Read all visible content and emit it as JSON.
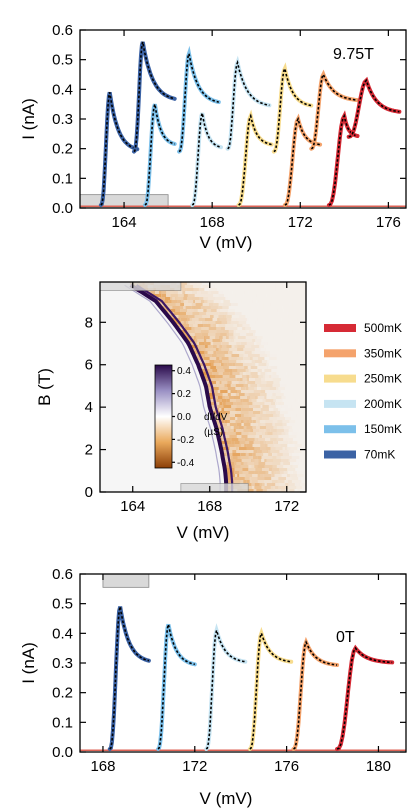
{
  "legend": [
    {
      "label": "500mK",
      "color": "#d62a35"
    },
    {
      "label": "350mK",
      "color": "#f4a36c"
    },
    {
      "label": "250mK",
      "color": "#f7dc8e"
    },
    {
      "label": "200mK",
      "color": "#c6e4f2"
    },
    {
      "label": "150mK",
      "color": "#7cc0ea"
    },
    {
      "label": "70mK",
      "color": "#3b62a4"
    }
  ],
  "fit_color": "#000000",
  "chart_data": [
    {
      "type": "line",
      "annotation": "9.75T",
      "xlabel": "V (mV)",
      "ylabel": "I (nA)",
      "xlim": [
        162,
        176.8
      ],
      "ylim": [
        0,
        0.6
      ],
      "xticks": [
        "164",
        "168",
        "172",
        "176"
      ],
      "yticks": [
        "0.0",
        "0.1",
        "0.2",
        "0.3",
        "0.4",
        "0.5",
        "0.6"
      ],
      "shaded_box": {
        "x": [
          162,
          166
        ],
        "y": [
          0,
          0.045
        ]
      },
      "peaks": [
        {
          "v0": 162.95,
          "i0": 0.01,
          "vp": 163.35,
          "ip": 0.39,
          "imin": 0.19,
          "vend": 164.6,
          "color": "#3b62a4"
        },
        {
          "v0": 164.45,
          "i0": 0.19,
          "vp": 164.85,
          "ip": 0.56,
          "imin": 0.36,
          "vend": 166.3,
          "color": "#3b62a4"
        },
        {
          "v0": 164.95,
          "i0": 0.01,
          "vp": 165.4,
          "ip": 0.35,
          "imin": 0.21,
          "vend": 166.3,
          "color": "#7cc0ea"
        },
        {
          "v0": 166.5,
          "i0": 0.19,
          "vp": 166.95,
          "ip": 0.52,
          "imin": 0.35,
          "vend": 168.3,
          "color": "#7cc0ea"
        },
        {
          "v0": 167.1,
          "i0": 0.01,
          "vp": 167.55,
          "ip": 0.32,
          "imin": 0.2,
          "vend": 168.4,
          "color": "#c6e4f2"
        },
        {
          "v0": 168.7,
          "i0": 0.2,
          "vp": 169.15,
          "ip": 0.49,
          "imin": 0.34,
          "vend": 170.6,
          "color": "#c6e4f2"
        },
        {
          "v0": 169.2,
          "i0": 0.01,
          "vp": 169.75,
          "ip": 0.31,
          "imin": 0.21,
          "vend": 170.7,
          "color": "#f7dc8e"
        },
        {
          "v0": 170.8,
          "i0": 0.19,
          "vp": 171.3,
          "ip": 0.47,
          "imin": 0.34,
          "vend": 172.5,
          "color": "#f7dc8e"
        },
        {
          "v0": 171.3,
          "i0": 0.01,
          "vp": 171.9,
          "ip": 0.3,
          "imin": 0.21,
          "vend": 172.9,
          "color": "#f4a36c"
        },
        {
          "v0": 172.5,
          "i0": 0.2,
          "vp": 173.05,
          "ip": 0.45,
          "imin": 0.36,
          "vend": 174.6,
          "color": "#f4a36c"
        },
        {
          "v0": 173.3,
          "i0": 0.01,
          "vp": 174.0,
          "ip": 0.31,
          "imin": 0.24,
          "vend": 174.6,
          "color": "#d62a35"
        },
        {
          "v0": 174.2,
          "i0": 0.24,
          "vp": 175.0,
          "ip": 0.43,
          "imin": 0.32,
          "vend": 176.5,
          "color": "#d62a35"
        }
      ]
    },
    {
      "type": "heatmap",
      "xlabel": "V (mV)",
      "ylabel": "B (T)",
      "xlim": [
        162.3,
        173.0
      ],
      "ylim": [
        0,
        9.9
      ],
      "xticks": [
        "164",
        "168",
        "172"
      ],
      "yticks": [
        "0",
        "2",
        "4",
        "6",
        "8"
      ],
      "colorbar": {
        "label": [
          "dI/dV",
          "(µS)"
        ],
        "ticks": [
          "0.4",
          "0.2",
          "0.0",
          "-0.2",
          "-0.4"
        ],
        "range": [
          -0.45,
          0.45
        ]
      },
      "shaded_boxes": [
        {
          "x": [
            162.3,
            166.5
          ],
          "y": [
            9.5,
            9.9
          ]
        },
        {
          "x": [
            166.5,
            170.0
          ],
          "y": [
            0,
            0.4
          ]
        }
      ],
      "edge_B": [
        0,
        0.5,
        1,
        2,
        3,
        4,
        5,
        6,
        7,
        8,
        9,
        9.8
      ],
      "edge_V": [
        168.85,
        168.85,
        168.8,
        168.6,
        168.35,
        168.0,
        167.8,
        167.4,
        166.9,
        166.1,
        165.2,
        163.8
      ]
    },
    {
      "type": "line",
      "annotation": "0T",
      "xlabel": "V (mV)",
      "ylabel": "I (nA)",
      "xlim": [
        167,
        181.2
      ],
      "ylim": [
        0,
        0.6
      ],
      "xticks": [
        "168",
        "172",
        "176",
        "180"
      ],
      "yticks": [
        "0.0",
        "0.1",
        "0.2",
        "0.3",
        "0.4",
        "0.5",
        "0.6"
      ],
      "shaded_box": {
        "x": [
          168,
          170
        ],
        "y": [
          0.555,
          0.6
        ]
      },
      "peaks": [
        {
          "v0": 168.3,
          "i0": 0.01,
          "vp": 168.75,
          "ip": 0.49,
          "imin": 0.3,
          "vend": 170.0,
          "color": "#3b62a4"
        },
        {
          "v0": 170.4,
          "i0": 0.01,
          "vp": 170.85,
          "ip": 0.43,
          "imin": 0.29,
          "vend": 172.0,
          "color": "#7cc0ea"
        },
        {
          "v0": 172.5,
          "i0": 0.01,
          "vp": 172.95,
          "ip": 0.41,
          "imin": 0.3,
          "vend": 174.2,
          "color": "#c6e4f2"
        },
        {
          "v0": 174.4,
          "i0": 0.01,
          "vp": 174.9,
          "ip": 0.4,
          "imin": 0.3,
          "vend": 176.2,
          "color": "#f7dc8e"
        },
        {
          "v0": 176.3,
          "i0": 0.01,
          "vp": 176.85,
          "ip": 0.37,
          "imin": 0.29,
          "vend": 178.2,
          "color": "#f4a36c"
        },
        {
          "v0": 178.2,
          "i0": 0.01,
          "vp": 179.0,
          "ip": 0.35,
          "imin": 0.3,
          "vend": 180.6,
          "color": "#d62a35"
        }
      ]
    }
  ]
}
